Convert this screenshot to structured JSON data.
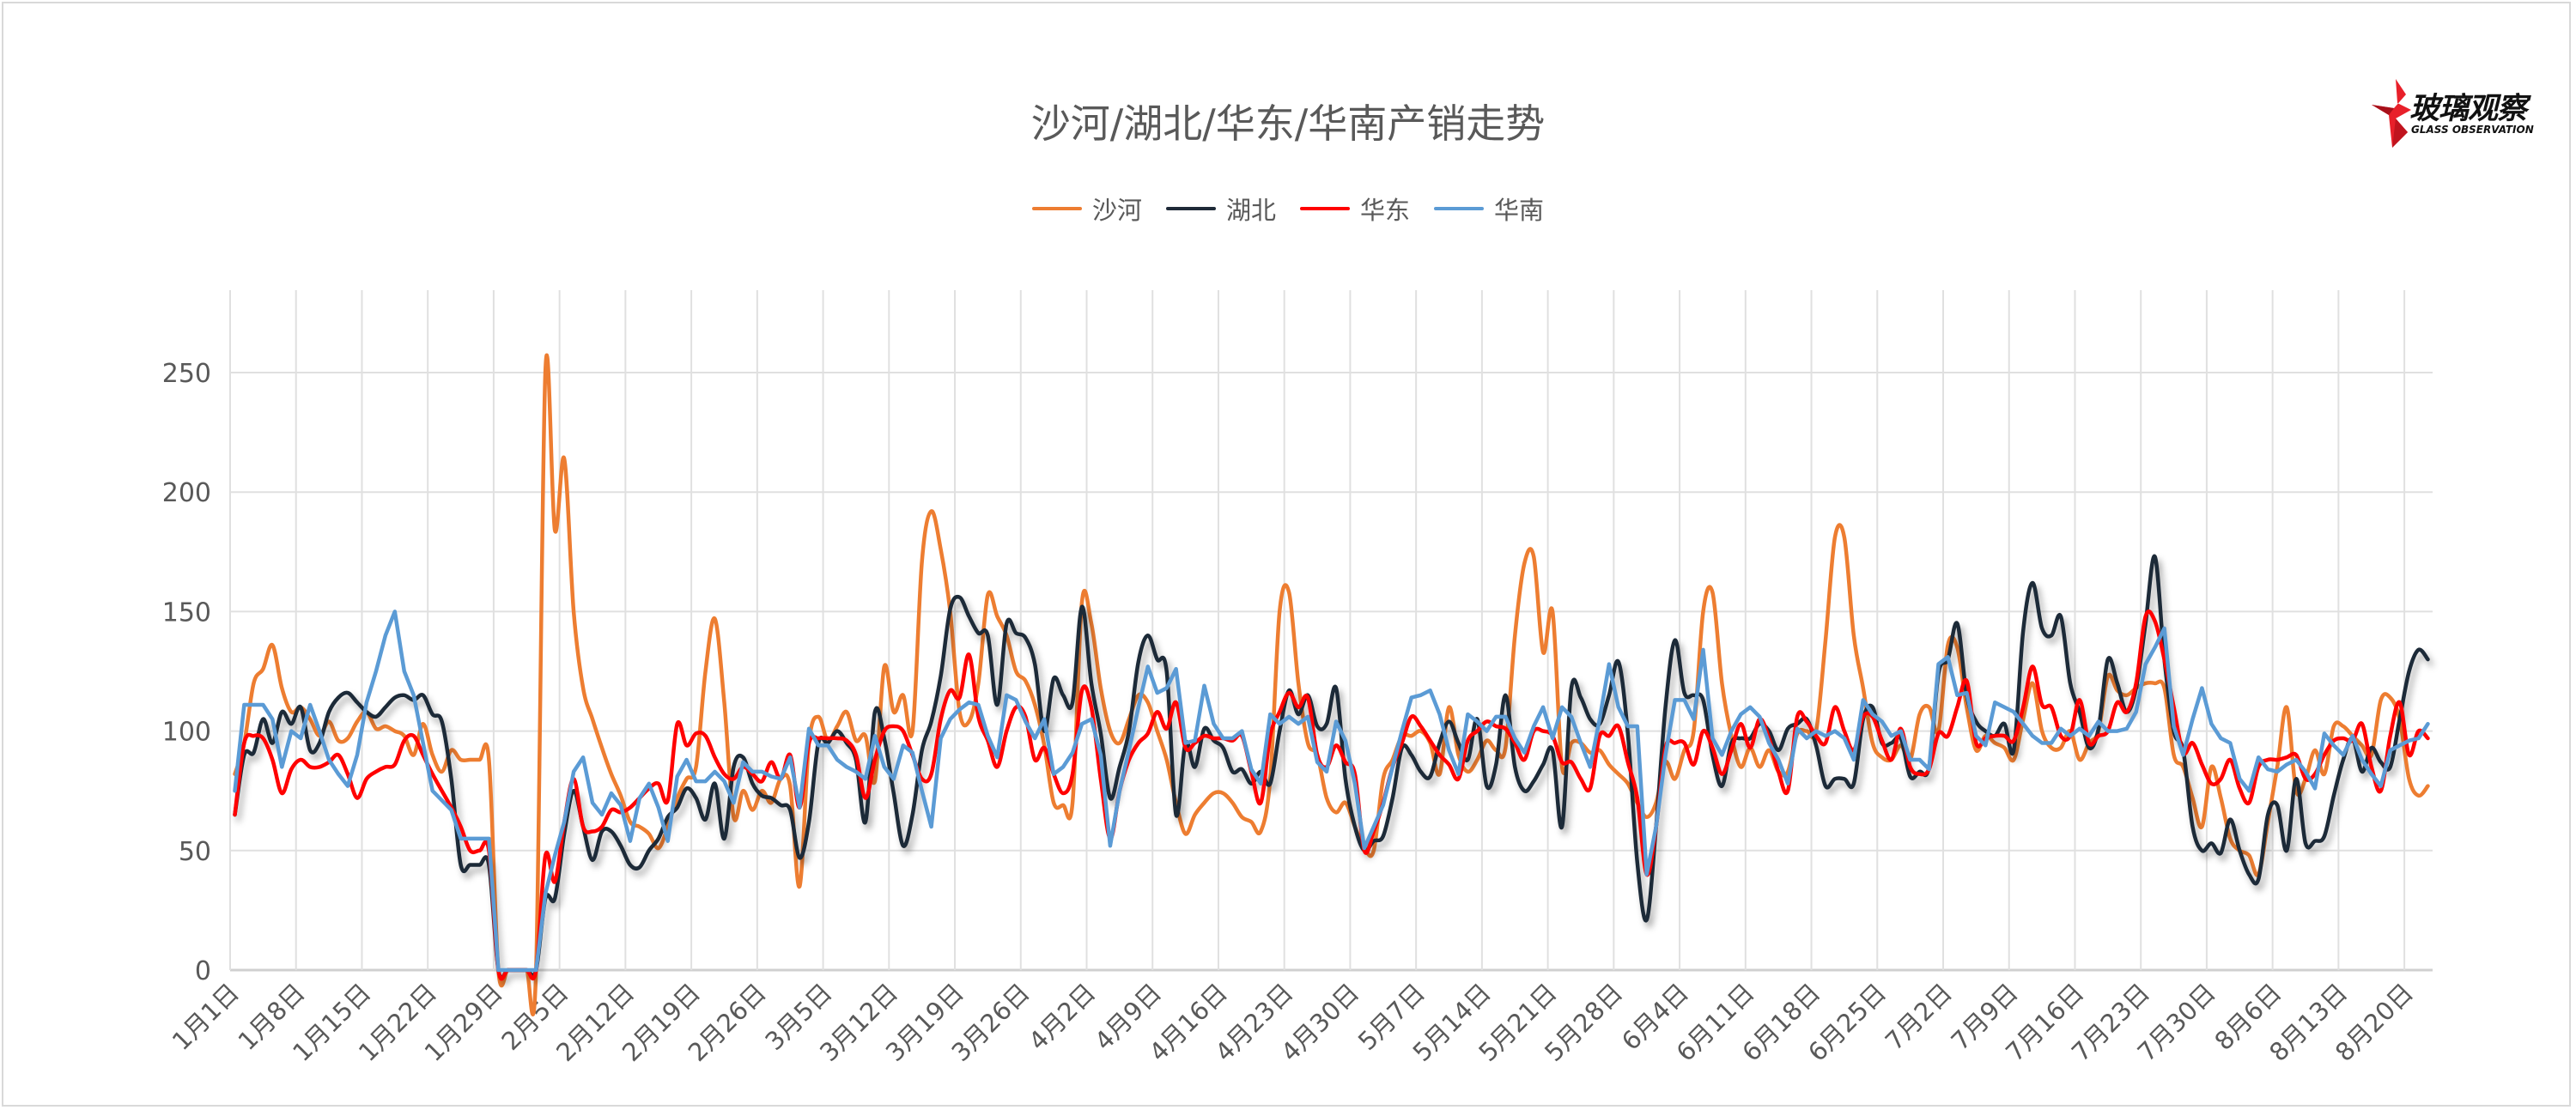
{
  "title": "沙河/湖北/华东/华南产销走势",
  "logo": {
    "text_cn": "玻璃观察",
    "text_en": "GLASS OBSERVATION",
    "color": "#E8202A"
  },
  "chart_data": {
    "type": "line",
    "title": "沙河/湖北/华东/华南产销走势",
    "xlabel": "",
    "ylabel": "",
    "ylim": [
      0,
      250
    ],
    "y_ticks": [
      "0",
      "50",
      "100",
      "150",
      "200",
      "250"
    ],
    "x": {
      "start": "1月1日",
      "end": "8月22日",
      "step": "daily"
    },
    "x_ticks": [
      "1月1日",
      "1月8日",
      "1月15日",
      "1月22日",
      "1月29日",
      "2月5日",
      "2月12日",
      "2月19日",
      "2月26日",
      "3月5日",
      "3月12日",
      "3月19日",
      "3月26日",
      "4月2日",
      "4月9日",
      "4月16日",
      "4月23日",
      "4月30日",
      "5月7日",
      "5月14日",
      "5月21日",
      "5月28日",
      "6月4日",
      "6月11日",
      "6月18日",
      "6月25日",
      "7月2日",
      "7月9日",
      "7月16日",
      "7月23日",
      "7月30日",
      "8月6日",
      "8月13日",
      "8月20日"
    ],
    "grid": true,
    "legend_position": "top",
    "series": [
      {
        "name": "沙河",
        "color": "#ED7D31",
        "smooth": true,
        "values": [
          82,
          95,
          120,
          126,
          136,
          118,
          108,
          110,
          105,
          98,
          104,
          96,
          97,
          104,
          108,
          101,
          102,
          100,
          98,
          90,
          103,
          90,
          83,
          92,
          88,
          88,
          88,
          88,
          0,
          0,
          0,
          0,
          0,
          251,
          184,
          214,
          150,
          118,
          105,
          93,
          82,
          73,
          62,
          60,
          57,
          51,
          60,
          72,
          80,
          85,
          125,
          147,
          112,
          64,
          75,
          67,
          75,
          70,
          80,
          77,
          35,
          95,
          106,
          96,
          102,
          108,
          96,
          98,
          79,
          127,
          108,
          115,
          100,
          171,
          192,
          176,
          150,
          108,
          104,
          120,
          157,
          148,
          140,
          125,
          121,
          111,
          94,
          70,
          69,
          70,
          154,
          145,
          118,
          100,
          95,
          105,
          115,
          112,
          100,
          88,
          70,
          57,
          65,
          70,
          74,
          74,
          70,
          64,
          62,
          58,
          80,
          150,
          158,
          120,
          95,
          90,
          72,
          66,
          70,
          60,
          51,
          50,
          80,
          88,
          98,
          98,
          100,
          95,
          82,
          110,
          90,
          83,
          88,
          96,
          92,
          93,
          140,
          170,
          173,
          133,
          150,
          85,
          95,
          95,
          91,
          92,
          86,
          82,
          78,
          70,
          64,
          70,
          87,
          80,
          92,
          100,
          150,
          158,
          120,
          98,
          85,
          93,
          85,
          92,
          83,
          83,
          99,
          100,
          100,
          138,
          181,
          181,
          140,
          118,
          95,
          89,
          88,
          94,
          88,
          107,
          110,
          100,
          136,
          135,
          110,
          92,
          98,
          95,
          93,
          88,
          105,
          120,
          100,
          93,
          93,
          100,
          88,
          95,
          100,
          123,
          117,
          115,
          118,
          120,
          120,
          118,
          90,
          85,
          72,
          60,
          85,
          72,
          55,
          50,
          48,
          40,
          62,
          85,
          110,
          75,
          80,
          92,
          82,
          102,
          102,
          98,
          94,
          90,
          113,
          114,
          105,
          80,
          73,
          77
        ]
      },
      {
        "name": "湖北",
        "color": "#1F2A38",
        "smooth": true,
        "values": [
          65,
          90,
          91,
          105,
          95,
          108,
          103,
          110,
          92,
          95,
          108,
          114,
          116,
          112,
          108,
          106,
          110,
          114,
          115,
          113,
          115,
          107,
          104,
          80,
          44,
          44,
          44,
          44,
          0,
          0,
          0,
          0,
          0,
          30,
          30,
          57,
          75,
          60,
          46,
          58,
          58,
          52,
          44,
          43,
          50,
          55,
          64,
          68,
          76,
          72,
          63,
          78,
          55,
          85,
          89,
          78,
          73,
          72,
          69,
          67,
          47,
          62,
          95,
          95,
          100,
          95,
          88,
          62,
          108,
          97,
          74,
          52,
          65,
          92,
          104,
          123,
          151,
          156,
          148,
          141,
          140,
          111,
          145,
          141,
          139,
          128,
          100,
          122,
          115,
          112,
          152,
          120,
          99,
          72,
          85,
          100,
          129,
          140,
          130,
          125,
          65,
          95,
          85,
          101,
          96,
          93,
          83,
          84,
          78,
          83,
          78,
          100,
          117,
          107,
          115,
          102,
          103,
          118,
          80,
          60,
          50,
          54,
          56,
          72,
          93,
          90,
          83,
          81,
          95,
          104,
          95,
          88,
          105,
          77,
          86,
          115,
          85,
          75,
          79,
          86,
          92,
          60,
          118,
          114,
          105,
          103,
          115,
          129,
          99,
          45,
          21,
          60,
          110,
          138,
          116,
          115,
          113,
          90,
          77,
          95,
          97,
          97,
          103,
          100,
          92,
          101,
          103,
          105,
          94,
          77,
          80,
          80,
          78,
          105,
          110,
          95,
          95,
          97,
          81,
          83,
          85,
          124,
          130,
          145,
          115,
          104,
          100,
          98,
          103,
          92,
          142,
          162,
          143,
          140,
          148,
          120,
          108,
          93,
          101,
          130,
          120,
          108,
          118,
          145,
          173,
          130,
          100,
          92,
          60,
          50,
          53,
          49,
          63,
          50,
          40,
          38,
          65,
          69,
          50,
          80,
          53,
          54,
          56,
          73,
          88,
          97,
          83,
          93,
          87,
          85,
          105,
          125,
          134,
          130
        ]
      },
      {
        "name": "华东",
        "color": "#FF0000",
        "smooth": true,
        "values": [
          65,
          95,
          98,
          97,
          88,
          74,
          84,
          88,
          85,
          85,
          87,
          90,
          82,
          72,
          80,
          83,
          85,
          86,
          96,
          98,
          90,
          82,
          75,
          68,
          60,
          50,
          50,
          50,
          0,
          0,
          0,
          0,
          0,
          48,
          37,
          62,
          80,
          60,
          58,
          60,
          67,
          66,
          68,
          72,
          76,
          78,
          71,
          103,
          94,
          99,
          98,
          89,
          82,
          80,
          85,
          82,
          79,
          87,
          80,
          90,
          68,
          95,
          97,
          97,
          97,
          96,
          90,
          72,
          88,
          100,
          102,
          100,
          90,
          80,
          82,
          105,
          117,
          114,
          132,
          106,
          96,
          85,
          100,
          110,
          106,
          88,
          93,
          82,
          74,
          82,
          117,
          110,
          80,
          55,
          75,
          88,
          95,
          99,
          108,
          101,
          112,
          93,
          95,
          98,
          97,
          97,
          96,
          98,
          83,
          70,
          98,
          108,
          116,
          110,
          114,
          90,
          85,
          94,
          87,
          82,
          50,
          58,
          70,
          85,
          95,
          106,
          102,
          96,
          90,
          86,
          80,
          96,
          100,
          104,
          102,
          101,
          95,
          88,
          100,
          100,
          98,
          87,
          87,
          80,
          76,
          98,
          98,
          102,
          87,
          72,
          40,
          60,
          93,
          95,
          95,
          86,
          100,
          93,
          82,
          92,
          103,
          93,
          105,
          97,
          83,
          75,
          106,
          104,
          98,
          95,
          110,
          100,
          92,
          106,
          106,
          96,
          88,
          101,
          85,
          82,
          84,
          99,
          98,
          110,
          121,
          95,
          97,
          98,
          98,
          96,
          110,
          127,
          111,
          110,
          98,
          98,
          113,
          95,
          98,
          100,
          112,
          108,
          120,
          148,
          146,
          130,
          110,
          91,
          95,
          86,
          78,
          80,
          88,
          76,
          70,
          85,
          88,
          88,
          89,
          90,
          80,
          82,
          90,
          96,
          97,
          96,
          103,
          85,
          75,
          98,
          112,
          90,
          100,
          97
        ]
      },
      {
        "name": "华南",
        "color": "#5B9BD5",
        "smooth": false,
        "values": [
          75,
          111,
          111,
          111,
          105,
          85,
          100,
          97,
          111,
          100,
          88,
          82,
          77,
          90,
          112,
          125,
          140,
          150,
          125,
          115,
          95,
          75,
          71,
          67,
          55,
          55,
          55,
          55,
          0,
          0,
          0,
          0,
          0,
          32,
          48,
          62,
          83,
          89,
          70,
          65,
          74,
          69,
          54,
          72,
          78,
          68,
          54,
          81,
          88,
          79,
          79,
          83,
          79,
          70,
          87,
          83,
          83,
          81,
          80,
          89,
          68,
          101,
          94,
          94,
          88,
          85,
          83,
          80,
          98,
          85,
          80,
          94,
          91,
          75,
          60,
          97,
          105,
          109,
          112,
          111,
          98,
          89,
          115,
          113,
          104,
          97,
          105,
          82,
          85,
          91,
          103,
          105,
          90,
          52,
          75,
          92,
          110,
          127,
          116,
          118,
          126,
          95,
          96,
          119,
          103,
          97,
          97,
          100,
          84,
          78,
          107,
          103,
          106,
          103,
          106,
          87,
          83,
          104,
          96,
          78,
          51,
          60,
          69,
          85,
          100,
          114,
          115,
          117,
          107,
          92,
          82,
          107,
          104,
          100,
          106,
          106,
          97,
          91,
          102,
          110,
          97,
          110,
          106,
          95,
          85,
          105,
          128,
          110,
          102,
          102,
          40,
          60,
          90,
          113,
          113,
          105,
          134,
          97,
          90,
          100,
          107,
          110,
          106,
          95,
          88,
          78,
          101,
          97,
          100,
          98,
          100,
          97,
          88,
          113,
          107,
          104,
          98,
          100,
          88,
          88,
          84,
          128,
          131,
          115,
          116,
          98,
          94,
          112,
          110,
          108,
          103,
          98,
          95,
          95,
          101,
          98,
          101,
          98,
          104,
          100,
          100,
          101,
          108,
          128,
          135,
          143,
          102,
          90,
          105,
          118,
          103,
          97,
          95,
          80,
          75,
          89,
          84,
          83,
          86,
          88,
          83,
          76,
          99,
          94,
          90,
          98,
          88,
          82,
          77,
          92,
          94,
          96,
          97,
          103
        ]
      }
    ]
  }
}
